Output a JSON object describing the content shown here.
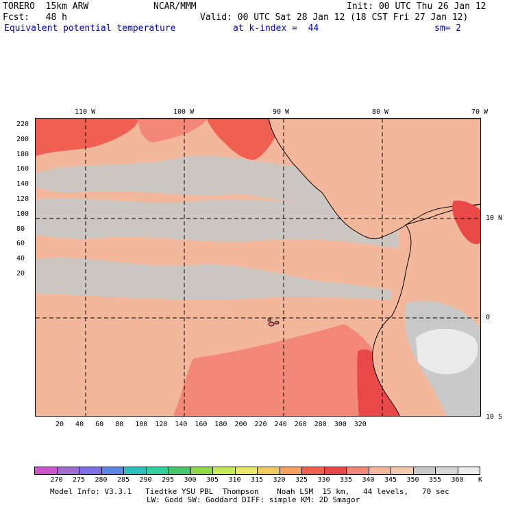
{
  "header": {
    "model": "TORERO  15km ARW",
    "org": "NCAR/MMM",
    "init": "Init: 00 UTC Thu 26 Jan 12",
    "fcst": "Fcst:   48 h",
    "valid": "Valid: 00 UTC Sat 28 Jan 12 (18 CST Fri 27 Jan 12)",
    "field": "Equivalent potential temperature",
    "level": "at k-index =  44",
    "smooth": "sm= 2"
  },
  "map": {
    "lon_labels": [
      "110 W",
      "100 W",
      "90 W",
      "80 W",
      "70 W"
    ],
    "lat_labels": [
      "10 N",
      "0",
      "10 S"
    ],
    "y_ticks": [
      "220",
      "200",
      "180",
      "160",
      "140",
      "120",
      "100",
      "80",
      "60",
      "40",
      "20"
    ],
    "x_ticks": [
      "20",
      "40",
      "60",
      "80",
      "100",
      "120",
      "140",
      "160",
      "180",
      "200",
      "220",
      "240",
      "260",
      "280",
      "300",
      "320"
    ]
  },
  "colorbar": {
    "labels": [
      "270",
      "275",
      "280",
      "285",
      "290",
      "295",
      "300",
      "305",
      "310",
      "315",
      "320",
      "325",
      "330",
      "335",
      "340",
      "345",
      "350",
      "355",
      "360"
    ],
    "unit": "K",
    "colors": [
      "#cc55cc",
      "#9f6ccf",
      "#7f6fe6",
      "#5b86e6",
      "#2bbfbf",
      "#30d0a0",
      "#46c86a",
      "#90d84a",
      "#c6e85a",
      "#e8e868",
      "#f0cc60",
      "#f6a060",
      "#f06050",
      "#e84848",
      "#f48878",
      "#f3b89c",
      "#f4c9ae",
      "#c9c9c9",
      "#d8d8d8",
      "#ebebeb"
    ]
  },
  "footer": {
    "line1": "Model Info: V3.3.1   Tiedtke YSU PBL  Thompson    Noah LSM  15 km,   44 levels,   70 sec",
    "line2": "LW: Godd SW: Goddard DIFF: simple KM: 2D Smagor"
  }
}
